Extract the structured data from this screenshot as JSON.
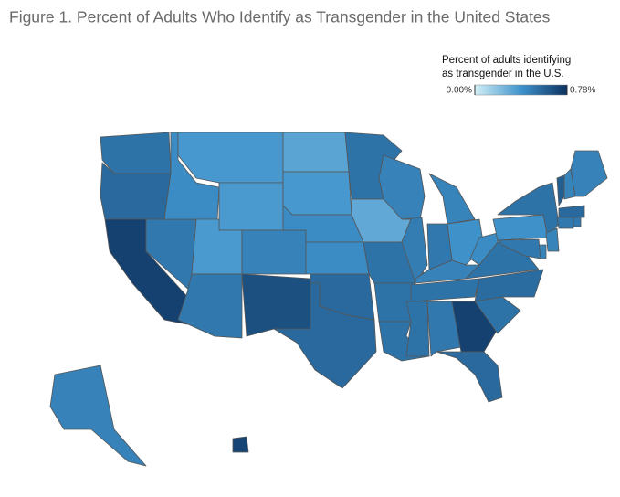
{
  "chart_data": {
    "type": "choropleth",
    "title": "Figure 1. Percent of Adults Who Identify as Transgender in the United States",
    "legend_title": [
      "Percent of adults identifying",
      "as transgender in the U.S."
    ],
    "lim": [
      0,
      0.78
    ],
    "legend_ticks": [
      {
        "value": 0,
        "label": "0.00%"
      },
      {
        "value": 0.78,
        "label": "0.78%"
      }
    ],
    "colors": [
      "#d3f0f6",
      "#3f93cc",
      "#0d3260"
    ],
    "values": [
      0.52,
      0.56,
      0.72,
      0.5,
      0.42,
      0.37,
      0.36,
      0.36,
      0.46,
      0.5,
      0.66,
      0.32,
      0.37,
      0.42,
      0.42,
      0.56,
      0.56,
      0.52,
      0.3,
      0.52,
      0.52,
      0.52,
      0.46,
      0.48,
      0.45,
      0.5,
      0.4,
      0.46,
      0.52,
      0.52,
      0.5,
      0.72,
      0.56,
      0.52,
      0.55,
      0.52,
      0.42,
      0.4,
      0.52,
      0.6,
      0.45,
      0.46,
      0.56,
      0.5,
      0.5,
      0.45,
      0.45,
      0.5,
      0.46,
      0.7
    ]
  }
}
